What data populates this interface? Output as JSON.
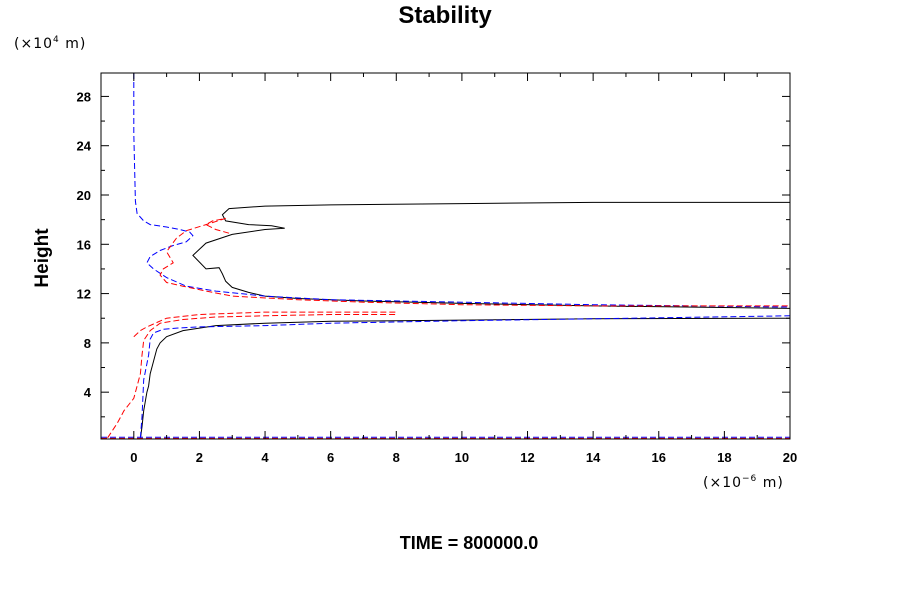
{
  "chart_data": {
    "type": "line",
    "title": "Stability",
    "ylabel": "Height",
    "xlabel": "",
    "y_unit": {
      "prefix": "(×10",
      "exp": "4",
      "suffix": " m)"
    },
    "x_unit": {
      "prefix": "(×10",
      "exp": "−6",
      "suffix": " m)"
    },
    "xlim": [
      -1,
      20
    ],
    "ylim": [
      0.2,
      29.9
    ],
    "x_ticks": [
      0,
      2,
      4,
      6,
      8,
      10,
      12,
      14,
      16,
      18,
      20
    ],
    "x_tick_labels": [
      "0",
      "2",
      "4",
      "6",
      "8",
      "10",
      "12",
      "14",
      "16",
      "18",
      "20"
    ],
    "y_ticks": [
      4,
      8,
      12,
      16,
      20,
      24,
      28
    ],
    "y_tick_labels": [
      "4",
      "8",
      "12",
      "16",
      "20",
      "24",
      "28"
    ],
    "grid": false,
    "series": [
      {
        "color": "#000000",
        "dash": "solid",
        "segments": [
          {
            "x": [
              0.2,
              0.25,
              0.3,
              0.4,
              0.45,
              0.5,
              0.6,
              0.7,
              0.8,
              1.0,
              1.5,
              2.5,
              4.0,
              6.0,
              8.0,
              10.0,
              14.0,
              20.0
            ],
            "y": [
              0.2,
              1.2,
              2.5,
              4.0,
              4.5,
              5.5,
              6.5,
              7.5,
              8.0,
              8.5,
              9.0,
              9.4,
              9.6,
              9.75,
              9.8,
              9.85,
              9.95,
              10.0
            ]
          },
          {
            "x": [
              20.0,
              14.0,
              10.0,
              7.0,
              5.0,
              4.0,
              3.5,
              3.0,
              2.8,
              2.7,
              2.6,
              2.2,
              1.8,
              2.2,
              3.0,
              4.0,
              4.6,
              4.2,
              3.5,
              2.8,
              2.7,
              2.9,
              4.0,
              6.0,
              10.0,
              14.0,
              20.0
            ],
            "y": [
              10.8,
              11.0,
              11.2,
              11.4,
              11.6,
              11.8,
              12.1,
              12.5,
              13.0,
              13.6,
              14.1,
              14.0,
              15.1,
              16.1,
              16.8,
              17.2,
              17.3,
              17.5,
              17.6,
              17.9,
              18.4,
              18.9,
              19.1,
              19.2,
              19.3,
              19.4,
              19.4
            ]
          }
        ]
      },
      {
        "color": "#0000ff",
        "dash": "dashed",
        "segments": [
          {
            "x": [
              0.0,
              0.0,
              0.05,
              0.1,
              0.3,
              0.5,
              1.0,
              1.4,
              1.7,
              1.8,
              1.6,
              1.2,
              0.8,
              0.5,
              0.4,
              0.6,
              1.0,
              1.6,
              2.5,
              4.0,
              6.0,
              10.0,
              14.0,
              20.0
            ],
            "y": [
              29.9,
              25.0,
              19.5,
              18.5,
              17.9,
              17.6,
              17.4,
              17.2,
              17.0,
              16.7,
              16.2,
              15.9,
              15.5,
              15.0,
              14.5,
              14.0,
              13.3,
              12.6,
              12.2,
              11.8,
              11.5,
              11.3,
              11.1,
              10.9
            ]
          },
          {
            "x": [
              0.2,
              0.25,
              0.3,
              0.45,
              0.5,
              0.6,
              0.9,
              1.3,
              2.0,
              4.0,
              6.0,
              10.0,
              14.0,
              20.0
            ],
            "y": [
              0.3,
              2.0,
              5.0,
              7.0,
              8.3,
              8.8,
              9.1,
              9.2,
              9.3,
              9.4,
              9.6,
              9.8,
              9.95,
              10.2
            ]
          },
          {
            "x": [
              -1.0,
              0.0,
              4.0,
              8.0,
              12.0,
              16.0,
              20.0
            ],
            "y": [
              0.35,
              0.35,
              0.35,
              0.35,
              0.35,
              0.35,
              0.35
            ]
          }
        ]
      },
      {
        "color": "#ff0000",
        "dash": "dashed",
        "segments": [
          {
            "x": [
              2.9,
              2.5,
              2.2,
              2.4,
              2.8,
              2.2,
              1.6,
              1.3,
              1.0,
              1.2,
              0.9,
              0.8,
              1.0,
              1.5,
              2.2,
              3.0,
              5.0,
              7.0,
              10.0,
              14.0,
              20.0
            ],
            "y": [
              16.9,
              17.2,
              17.6,
              17.9,
              18.1,
              17.6,
              17.1,
              16.5,
              15.4,
              14.5,
              14.0,
              13.5,
              12.9,
              12.6,
              12.2,
              11.8,
              11.5,
              11.3,
              11.1,
              11.0,
              11.0
            ]
          },
          {
            "x": [
              -0.8,
              -0.5,
              -0.3,
              0.0,
              0.2,
              0.25,
              0.3,
              0.5,
              0.8,
              1.5,
              2.5,
              4.0,
              6.0,
              8.0
            ],
            "y": [
              0.3,
              1.5,
              2.5,
              3.5,
              5.5,
              7.0,
              8.2,
              9.0,
              9.6,
              9.9,
              10.1,
              10.2,
              10.3,
              10.3
            ]
          },
          {
            "x": [
              0.0,
              0.2,
              0.4,
              1.0,
              2.0,
              4.0,
              6.0,
              8.0
            ],
            "y": [
              8.5,
              9.0,
              9.3,
              10.0,
              10.3,
              10.5,
              10.5,
              10.5
            ]
          },
          {
            "x": [
              -1.0,
              0.0,
              4.0,
              8.0,
              12.0,
              16.0,
              20.0
            ],
            "y": [
              0.25,
              0.25,
              0.25,
              0.25,
              0.25,
              0.25,
              0.25
            ]
          }
        ]
      }
    ],
    "annotation": "TIME = 800000.0"
  }
}
